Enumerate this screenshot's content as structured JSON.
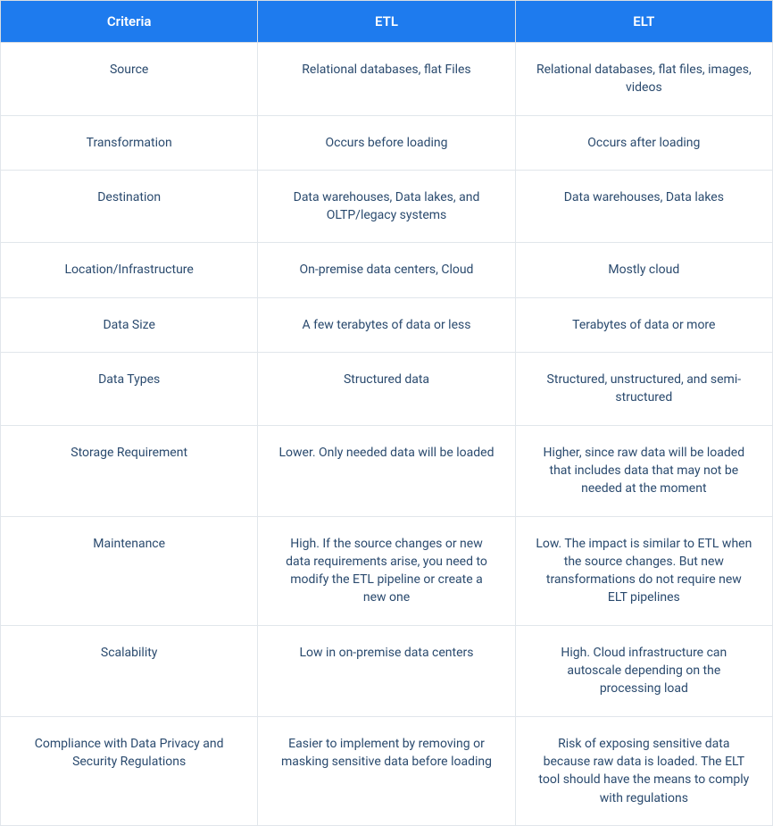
{
  "table": {
    "type": "table",
    "header_bg": "#1e7bee",
    "header_text_color": "#ffffff",
    "border_color": "#e1e6eb",
    "cell_text_color": "#2a4a6e",
    "header_fontsize": 15,
    "cell_fontsize": 14,
    "columns": [
      {
        "label": "Criteria",
        "width": "33.3%"
      },
      {
        "label": "ETL",
        "width": "33.3%"
      },
      {
        "label": "ELT",
        "width": "33.3%"
      }
    ],
    "rows": [
      {
        "criteria": "Source",
        "etl": "Relational databases, flat Files",
        "elt": "Relational databases, flat files, images, videos"
      },
      {
        "criteria": "Transformation",
        "etl": "Occurs before loading",
        "elt": "Occurs after loading"
      },
      {
        "criteria": "Destination",
        "etl": "Data warehouses, Data lakes, and OLTP/legacy systems",
        "elt": "Data warehouses, Data lakes"
      },
      {
        "criteria": "Location/Infrastructure",
        "etl": "On-premise data centers, Cloud",
        "elt": "Mostly cloud"
      },
      {
        "criteria": "Data Size",
        "etl": "A few terabytes of data or less",
        "elt": "Terabytes of data or more"
      },
      {
        "criteria": "Data Types",
        "etl": "Structured data",
        "elt": "Structured, unstructured, and semi-structured"
      },
      {
        "criteria": "Storage Requirement",
        "etl": "Lower. Only needed data will be loaded",
        "elt": "Higher, since raw data will be loaded that includes data that may not be needed at the moment"
      },
      {
        "criteria": "Maintenance",
        "etl": "High. If the source changes or new data requirements arise, you need to modify the ETL pipeline or create a new one",
        "elt": "Low. The impact is similar to ETL when the source changes. But new transformations do not require new ELT pipelines"
      },
      {
        "criteria": "Scalability",
        "etl": "Low in on-premise data centers",
        "elt": "High. Cloud infrastructure can autoscale depending on the processing load"
      },
      {
        "criteria": "Compliance with Data Privacy and Security Regulations",
        "etl": "Easier to implement by removing or masking sensitive data before loading",
        "elt": "Risk of exposing sensitive data because raw data is loaded. The ELT tool should have the means to comply with regulations"
      }
    ]
  }
}
